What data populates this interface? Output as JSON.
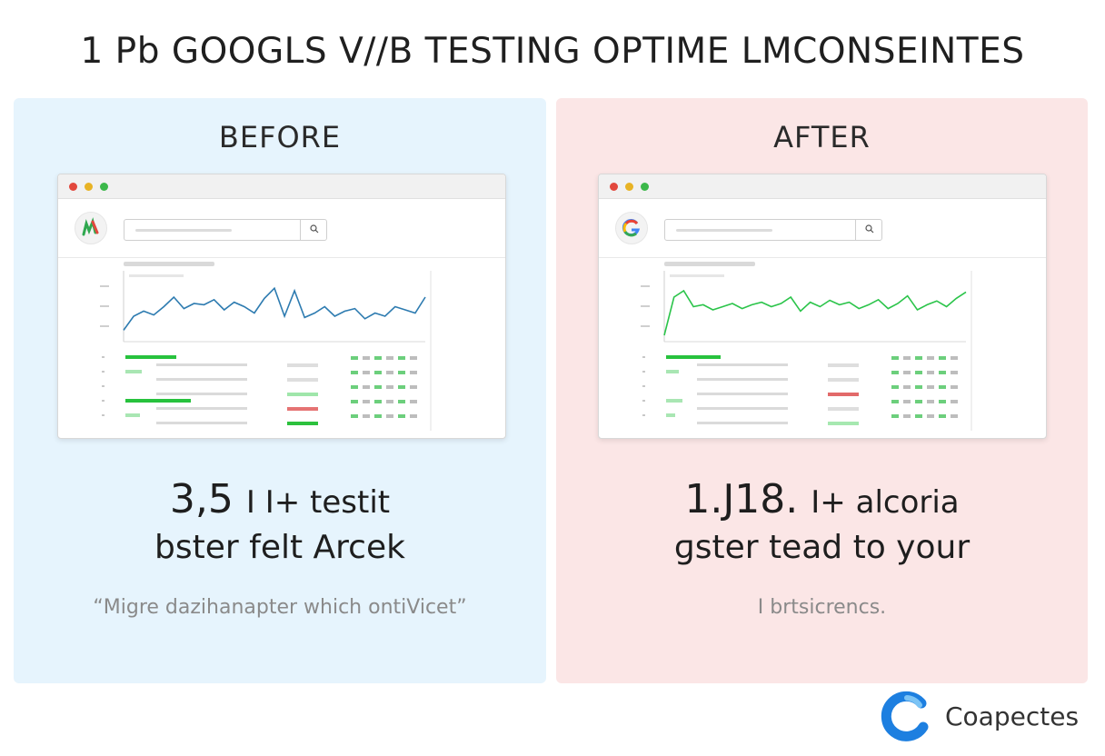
{
  "title": "1 Pb GOOGLS V//B TESTING OPTIME LMCONSEINTES",
  "before": {
    "heading": "BEFORE",
    "stat_value": "3,5",
    "stat_unit": "I I+ testit",
    "stat_caption": "bster felt Arcek",
    "quote": "“Migre dazihanapter which ontiVicet”",
    "logo_icon": "analytics-logo-icon",
    "search_icon": "magnifier-icon",
    "series_color": "#2d7bb0",
    "trend": [
      0.18,
      0.4,
      0.48,
      0.42,
      0.55,
      0.7,
      0.52,
      0.6,
      0.58,
      0.66,
      0.5,
      0.62,
      0.55,
      0.45,
      0.68,
      0.84,
      0.4,
      0.8,
      0.38,
      0.45,
      0.55,
      0.4,
      0.48,
      0.52,
      0.36,
      0.45,
      0.4,
      0.55,
      0.5,
      0.45,
      0.7
    ]
  },
  "after": {
    "heading": "AFTER",
    "stat_value": "1.J18.",
    "stat_unit": "I+ alcoria",
    "stat_caption": "ɡster tead to your",
    "quote": "I brtsicrencs.",
    "logo_icon": "google-g-logo-icon",
    "search_icon": "magnifier-icon",
    "series_color": "#2bc44a",
    "trend": [
      0.1,
      0.7,
      0.8,
      0.55,
      0.58,
      0.5,
      0.55,
      0.6,
      0.52,
      0.58,
      0.62,
      0.55,
      0.6,
      0.7,
      0.48,
      0.62,
      0.55,
      0.65,
      0.58,
      0.62,
      0.52,
      0.58,
      0.66,
      0.52,
      0.6,
      0.72,
      0.5,
      0.58,
      0.64,
      0.55,
      0.68,
      0.78
    ]
  },
  "brand": {
    "name": "Coapectes",
    "icon": "brand-c-logo-icon"
  }
}
